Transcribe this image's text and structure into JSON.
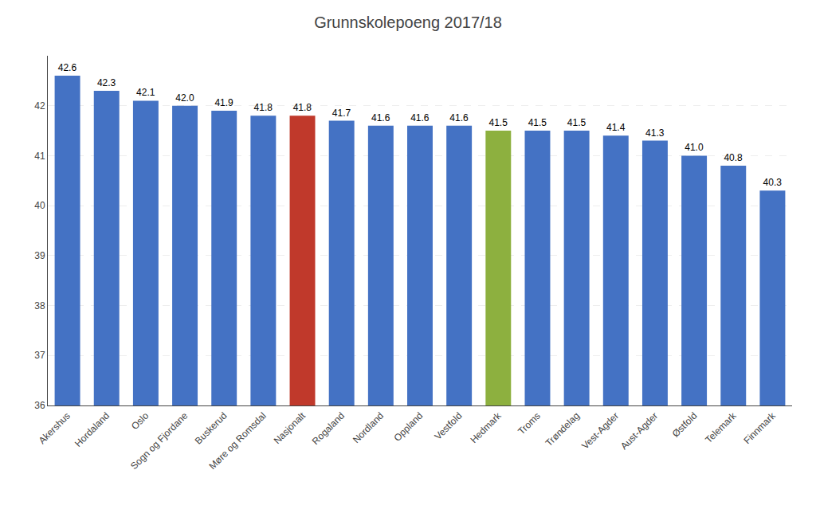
{
  "chart_data": {
    "type": "bar",
    "title": "Grunnskolepoeng 2017/18",
    "categories": [
      "Akershus",
      "Hordaland",
      "Oslo",
      "Sogn og Fjordane",
      "Buskerud",
      "Møre og Romsdal",
      "Nasjonalt",
      "Rogaland",
      "Nordland",
      "Oppland",
      "Vestfold",
      "Hedmark",
      "Troms",
      "Trøndelag",
      "Vest-Agder",
      "Aust-Agder",
      "Østfold",
      "Telemark",
      "Finnmark"
    ],
    "values": [
      42.6,
      42.3,
      42.1,
      42.0,
      41.9,
      41.8,
      41.8,
      41.7,
      41.6,
      41.6,
      41.6,
      41.5,
      41.5,
      41.5,
      41.4,
      41.3,
      41.0,
      40.8,
      40.3
    ],
    "value_labels": [
      "42.6",
      "42.3",
      "42.1",
      "42.0",
      "41.9",
      "41.8",
      "41.8",
      "41.7",
      "41.6",
      "41.6",
      "41.6",
      "41.5",
      "41.5",
      "41.5",
      "41.4",
      "41.3",
      "41.0",
      "40.8",
      "40.3"
    ],
    "colors": [
      "#4472C4",
      "#4472C4",
      "#4472C4",
      "#4472C4",
      "#4472C4",
      "#4472C4",
      "#C0392B",
      "#4472C4",
      "#4472C4",
      "#4472C4",
      "#4472C4",
      "#8DB03F",
      "#4472C4",
      "#4472C4",
      "#4472C4",
      "#4472C4",
      "#4472C4",
      "#4472C4",
      "#4472C4"
    ],
    "ylim": [
      36,
      43
    ],
    "yticks": [
      36,
      37,
      38,
      39,
      40,
      41,
      42
    ],
    "grid": true,
    "data_labels": true
  }
}
